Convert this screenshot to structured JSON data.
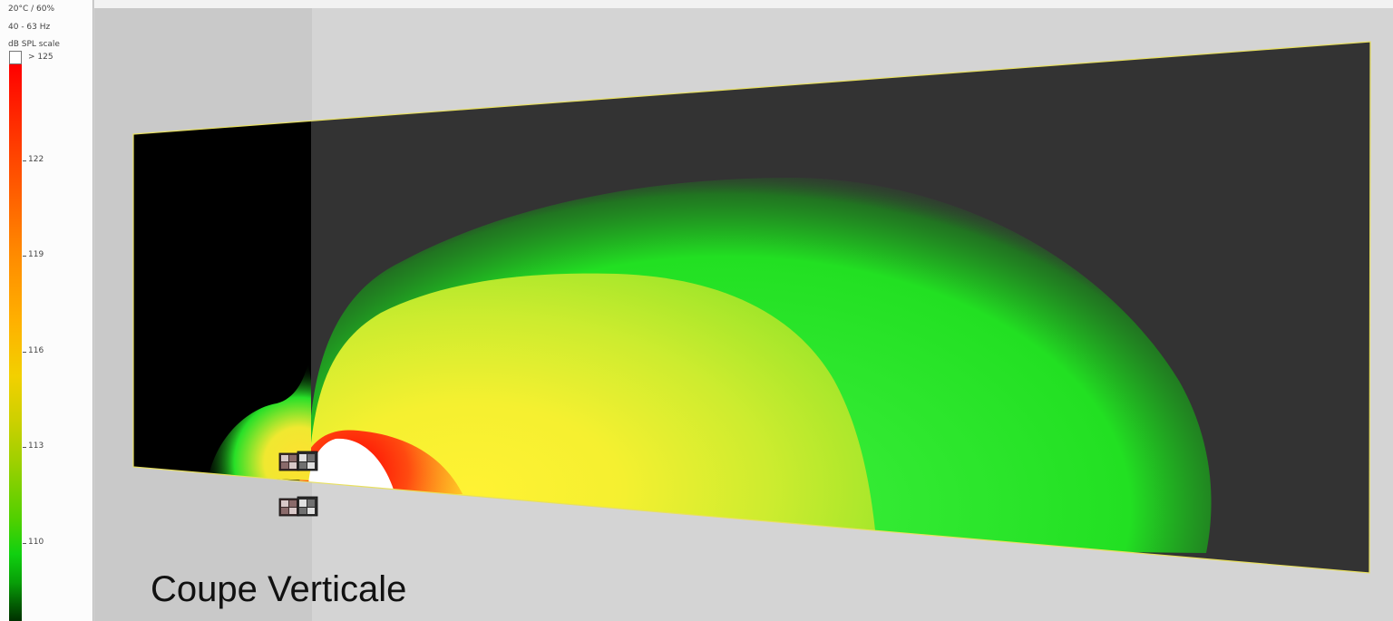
{
  "legend": {
    "conditions": "20°C / 60%",
    "band": "40 - 63 Hz",
    "scale_title": "dB SPL scale",
    "over_label": "> 125",
    "ticks": [
      {
        "label": "122",
        "value": 122
      },
      {
        "label": "119",
        "value": 119
      },
      {
        "label": "116",
        "value": 116
      },
      {
        "label": "113",
        "value": 113
      },
      {
        "label": "110",
        "value": 110
      }
    ],
    "max_color": "#ff0000",
    "mid_color": "#ffd700",
    "min_color": "#003000",
    "over_color": "#ffffff"
  },
  "view": {
    "title": "Coupe Verticale",
    "outline_color": "#e8e060",
    "plane_color": "#333333"
  },
  "speakers": [
    {
      "name": "speaker-stack-upper",
      "icon": "speaker-cabinet-icon"
    },
    {
      "name": "speaker-stack-lower",
      "icon": "speaker-cabinet-icon"
    }
  ]
}
